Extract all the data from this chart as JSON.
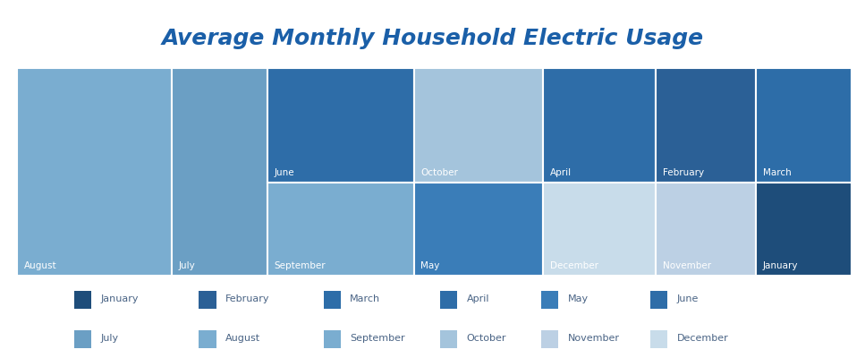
{
  "title": "Average Monthly Household Electric Usage",
  "colors": {
    "January": "#1e4d7a",
    "February": "#2b6096",
    "March": "#2d6da8",
    "April": "#2e6da8",
    "May": "#3a7db8",
    "June": "#2e6da8",
    "July": "#6b9fc4",
    "August": "#7aadd0",
    "September": "#7aadd0",
    "October": "#a4c4dc",
    "November": "#bcd0e4",
    "December": "#c8dcea"
  },
  "background": "#ffffff",
  "title_color": "#1a5fa8",
  "text_color": "#ffffff",
  "figsize": [
    9.67,
    4.0
  ],
  "dpi": 100,
  "legend_row1": [
    "January",
    "February",
    "March",
    "April",
    "May",
    "June"
  ],
  "legend_row2": [
    "July",
    "August",
    "September",
    "October",
    "November",
    "December"
  ],
  "treemap_rects": {
    "August": [
      0.0,
      0.0,
      0.185,
      1.0
    ],
    "July": [
      0.185,
      0.0,
      0.115,
      1.0
    ],
    "June": [
      0.3,
      0.45,
      0.175,
      0.55
    ],
    "September": [
      0.3,
      0.0,
      0.175,
      0.45
    ],
    "October": [
      0.475,
      0.45,
      0.155,
      0.55
    ],
    "May": [
      0.475,
      0.0,
      0.155,
      0.45
    ],
    "April": [
      0.63,
      0.45,
      0.135,
      0.55
    ],
    "December": [
      0.63,
      0.0,
      0.135,
      0.45
    ],
    "February": [
      0.765,
      0.45,
      0.12,
      0.55
    ],
    "November": [
      0.765,
      0.0,
      0.12,
      0.45
    ],
    "March": [
      0.885,
      0.45,
      0.115,
      0.55
    ],
    "January": [
      0.885,
      0.0,
      0.115,
      0.45
    ]
  }
}
